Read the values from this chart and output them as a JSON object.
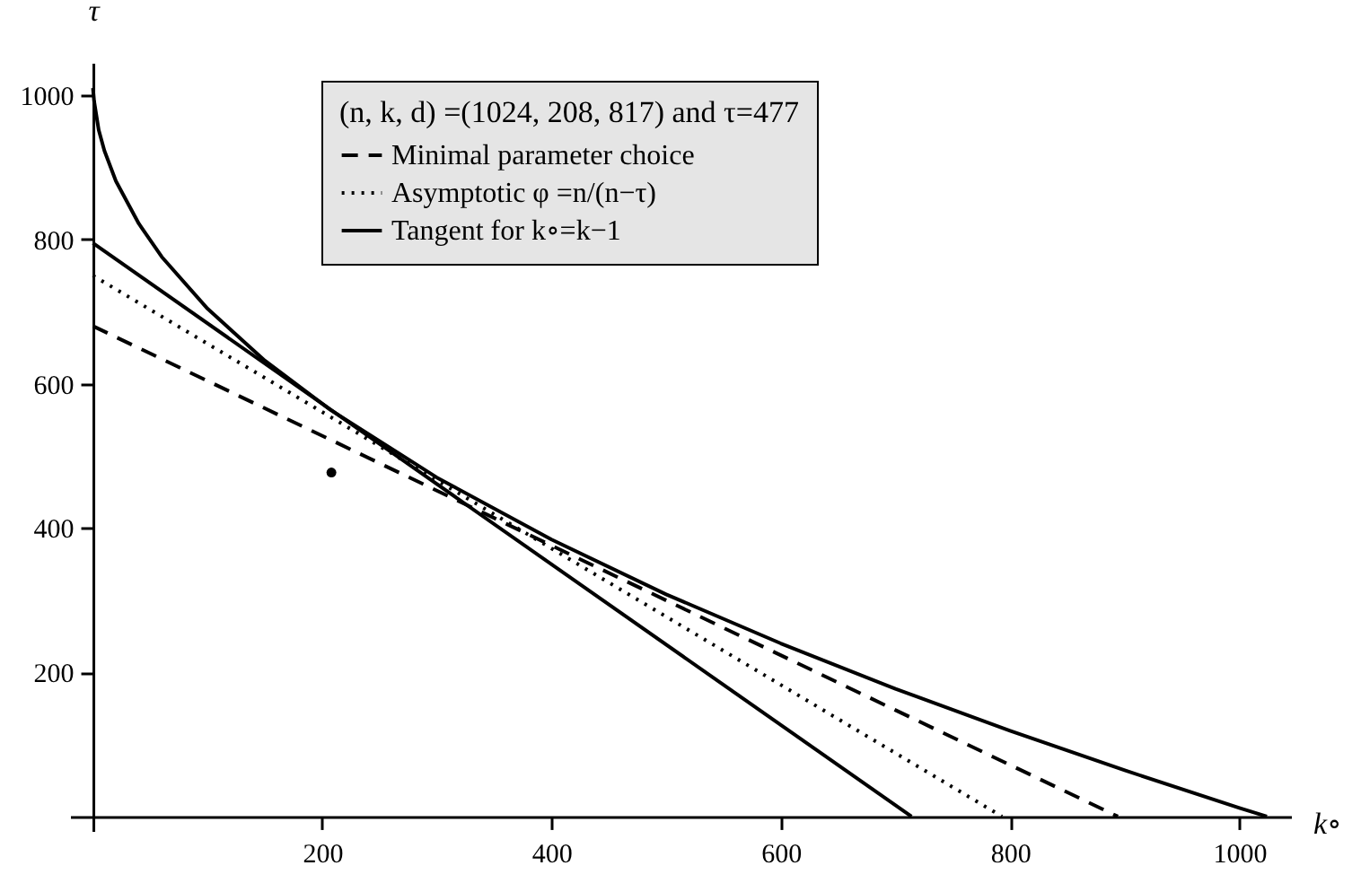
{
  "chart_data": {
    "type": "line",
    "legend_title": "(n, k, d) =(1024, 208, 817) and τ=477",
    "xlabel": "k∘",
    "ylabel": "τ",
    "xlim": [
      -20,
      1045
    ],
    "ylim": [
      -20,
      1045
    ],
    "xticks": [
      200,
      400,
      600,
      800,
      1000
    ],
    "yticks": [
      200,
      400,
      600,
      800,
      1000
    ],
    "grid": false,
    "legend": "top",
    "series": [
      {
        "color": "#000000",
        "line_style": "solid",
        "x": [
          0,
          1,
          5,
          10,
          20,
          40,
          60,
          100,
          150,
          207,
          300,
          400,
          500,
          600,
          700,
          800,
          900,
          1000,
          1024
        ],
        "values": [
          1010,
          992,
          952,
          923,
          881,
          822,
          776,
          704,
          632,
          564,
          470,
          384,
          308,
          240,
          177,
          119,
          64,
          12,
          0
        ]
      },
      {
        "name": "Minimal parameter choice",
        "color": "#000000",
        "line_style": "dashed",
        "x": [
          0,
          894
        ],
        "values": [
          680,
          0
        ]
      },
      {
        "name": "Asymptotic φ =n/(n−τ)",
        "color": "#000000",
        "line_style": "dotted",
        "x": [
          0,
          793
        ],
        "values": [
          750,
          0
        ]
      },
      {
        "name": "Tangent for k∘=k−1",
        "color": "#000000",
        "line_style": "solid",
        "x": [
          0,
          714
        ],
        "values": [
          795,
          0
        ]
      },
      {
        "type": "scatter",
        "color": "#000000",
        "marker": "circle",
        "x": [
          208
        ],
        "values": [
          477
        ]
      }
    ]
  }
}
